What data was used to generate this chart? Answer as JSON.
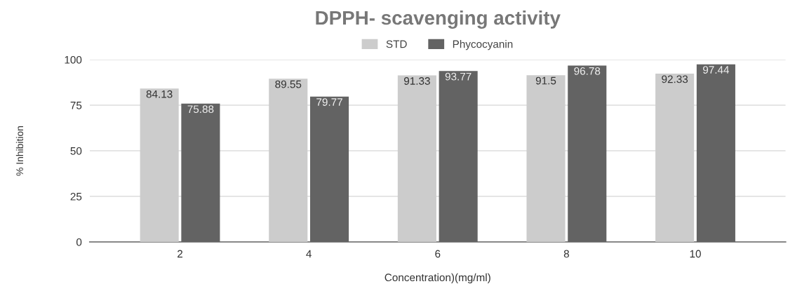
{
  "chart_data": {
    "type": "bar",
    "title": "DPPH- scavenging activity",
    "xlabel": "Concentration)(mg/ml)",
    "ylabel": "% Inhibition",
    "categories": [
      "2",
      "4",
      "6",
      "8",
      "10"
    ],
    "series": [
      {
        "name": "STD",
        "color": "#cccccc",
        "values": [
          84.13,
          89.55,
          91.33,
          91.5,
          92.33
        ]
      },
      {
        "name": "Phycocyanin",
        "color": "#636363",
        "values": [
          75.88,
          79.77,
          93.77,
          96.78,
          97.44
        ]
      }
    ],
    "ylim": [
      0,
      100
    ],
    "yticks": [
      0,
      25,
      50,
      75,
      100
    ],
    "grid": "y",
    "legend": "top",
    "data_labels": true
  }
}
